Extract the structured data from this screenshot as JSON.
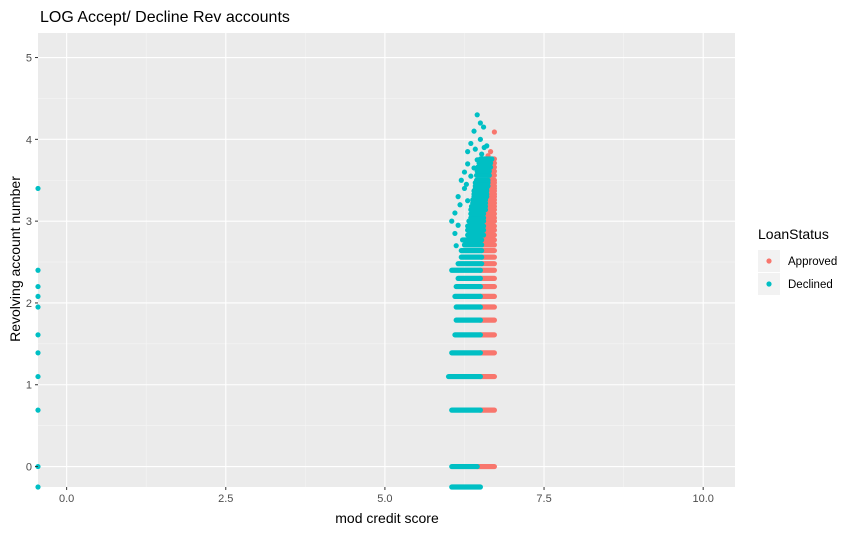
{
  "chart_data": {
    "type": "scatter",
    "title": "LOG Accept/ Decline Rev accounts",
    "xlabel": "mod credit score",
    "ylabel": "Revolving account number",
    "xlim": [
      -0.45,
      10.5
    ],
    "ylim": [
      -0.25,
      5.3
    ],
    "x_ticks": [
      0.0,
      2.5,
      5.0,
      7.5,
      10.0
    ],
    "x_tick_labels": [
      "0.0",
      "2.5",
      "5.0",
      "7.5",
      "10.0"
    ],
    "y_ticks": [
      0,
      1,
      2,
      3,
      4,
      5
    ],
    "y_tick_labels": [
      "0",
      "1",
      "2",
      "3",
      "4",
      "5"
    ],
    "grid": true,
    "legend": {
      "title": "LoanStatus",
      "position": "right"
    },
    "series": [
      {
        "name": "Approved",
        "color": "#f8766d",
        "bands": [
          {
            "y": 0.0,
            "x": [
              6.45,
              6.72
            ]
          },
          {
            "y": 0.69,
            "x": [
              6.5,
              6.72
            ]
          },
          {
            "y": 1.1,
            "x": [
              6.5,
              6.72
            ]
          },
          {
            "y": 1.39,
            "x": [
              6.5,
              6.72
            ]
          },
          {
            "y": 1.61,
            "x": [
              6.5,
              6.72
            ]
          },
          {
            "y": 1.79,
            "x": [
              6.5,
              6.72
            ]
          },
          {
            "y": 1.95,
            "x": [
              6.5,
              6.72
            ]
          },
          {
            "y": 2.08,
            "x": [
              6.5,
              6.72
            ]
          },
          {
            "y": 2.2,
            "x": [
              6.5,
              6.72
            ]
          },
          {
            "y": 2.3,
            "x": [
              6.5,
              6.72
            ]
          },
          {
            "y": 2.4,
            "x": [
              6.5,
              6.72
            ]
          },
          {
            "y": 2.48,
            "x": [
              6.52,
              6.72
            ]
          },
          {
            "y": 2.56,
            "x": [
              6.52,
              6.72
            ]
          },
          {
            "y": 2.64,
            "x": [
              6.52,
              6.72
            ]
          },
          {
            "y": 2.71,
            "x": [
              6.52,
              6.72
            ]
          },
          {
            "y": 2.77,
            "x": [
              6.52,
              6.72
            ]
          },
          {
            "y": 2.83,
            "x": [
              6.55,
              6.72
            ]
          },
          {
            "y": 2.89,
            "x": [
              6.55,
              6.72
            ]
          },
          {
            "y": 2.94,
            "x": [
              6.55,
              6.72
            ]
          },
          {
            "y": 3.0,
            "x": [
              6.55,
              6.72
            ]
          },
          {
            "y": 3.04,
            "x": [
              6.55,
              6.72
            ]
          },
          {
            "y": 3.09,
            "x": [
              6.55,
              6.72
            ]
          },
          {
            "y": 3.14,
            "x": [
              6.58,
              6.72
            ]
          },
          {
            "y": 3.18,
            "x": [
              6.58,
              6.72
            ]
          },
          {
            "y": 3.22,
            "x": [
              6.58,
              6.72
            ]
          },
          {
            "y": 3.26,
            "x": [
              6.58,
              6.72
            ]
          },
          {
            "y": 3.3,
            "x": [
              6.6,
              6.72
            ]
          },
          {
            "y": 3.33,
            "x": [
              6.6,
              6.72
            ]
          },
          {
            "y": 3.37,
            "x": [
              6.6,
              6.72
            ]
          },
          {
            "y": 3.4,
            "x": [
              6.6,
              6.72
            ]
          },
          {
            "y": 3.43,
            "x": [
              6.62,
              6.72
            ]
          },
          {
            "y": 3.47,
            "x": [
              6.62,
              6.72
            ]
          },
          {
            "y": 3.5,
            "x": [
              6.62,
              6.72
            ]
          },
          {
            "y": 3.56,
            "x": [
              6.64,
              6.72
            ]
          },
          {
            "y": 3.61,
            "x": [
              6.64,
              6.72
            ]
          },
          {
            "y": 3.66,
            "x": [
              6.66,
              6.72
            ]
          },
          {
            "y": 3.71,
            "x": [
              6.66,
              6.72
            ]
          },
          {
            "y": 3.76,
            "x": [
              6.68,
              6.72
            ]
          }
        ],
        "points": [
          {
            "x": 6.72,
            "y": 4.09
          },
          {
            "x": 6.62,
            "y": 3.8
          },
          {
            "x": 6.66,
            "y": 3.85
          },
          {
            "x": 6.7,
            "y": 3.74
          }
        ]
      },
      {
        "name": "Declined",
        "color": "#00bfc4",
        "bands": [
          {
            "y": -0.25,
            "x": [
              6.05,
              6.5
            ]
          },
          {
            "y": 0.0,
            "x": [
              6.05,
              6.45
            ]
          },
          {
            "y": 0.69,
            "x": [
              6.05,
              6.5
            ]
          },
          {
            "y": 1.1,
            "x": [
              6.0,
              6.5
            ]
          },
          {
            "y": 1.39,
            "x": [
              6.05,
              6.5
            ]
          },
          {
            "y": 1.61,
            "x": [
              6.1,
              6.5
            ]
          },
          {
            "y": 1.79,
            "x": [
              6.12,
              6.5
            ]
          },
          {
            "y": 1.95,
            "x": [
              6.12,
              6.5
            ]
          },
          {
            "y": 2.08,
            "x": [
              6.1,
              6.5
            ]
          },
          {
            "y": 2.2,
            "x": [
              6.12,
              6.5
            ]
          },
          {
            "y": 2.3,
            "x": [
              6.15,
              6.5
            ]
          },
          {
            "y": 2.4,
            "x": [
              6.05,
              6.5
            ]
          },
          {
            "y": 2.48,
            "x": [
              6.15,
              6.52
            ]
          },
          {
            "y": 2.56,
            "x": [
              6.2,
              6.52
            ]
          },
          {
            "y": 2.64,
            "x": [
              6.2,
              6.52
            ]
          },
          {
            "y": 2.71,
            "x": [
              6.25,
              6.52
            ]
          },
          {
            "y": 2.77,
            "x": [
              6.22,
              6.52
            ]
          },
          {
            "y": 2.83,
            "x": [
              6.3,
              6.55
            ]
          },
          {
            "y": 2.89,
            "x": [
              6.3,
              6.55
            ]
          },
          {
            "y": 2.94,
            "x": [
              6.3,
              6.55
            ]
          },
          {
            "y": 3.0,
            "x": [
              6.32,
              6.55
            ]
          },
          {
            "y": 3.04,
            "x": [
              6.35,
              6.55
            ]
          },
          {
            "y": 3.09,
            "x": [
              6.35,
              6.55
            ]
          },
          {
            "y": 3.14,
            "x": [
              6.35,
              6.58
            ]
          },
          {
            "y": 3.18,
            "x": [
              6.36,
              6.58
            ]
          },
          {
            "y": 3.22,
            "x": [
              6.38,
              6.58
            ]
          },
          {
            "y": 3.26,
            "x": [
              6.38,
              6.58
            ]
          },
          {
            "y": 3.3,
            "x": [
              6.4,
              6.6
            ]
          },
          {
            "y": 3.33,
            "x": [
              6.4,
              6.6
            ]
          },
          {
            "y": 3.37,
            "x": [
              6.4,
              6.6
            ]
          },
          {
            "y": 3.4,
            "x": [
              6.42,
              6.6
            ]
          },
          {
            "y": 3.43,
            "x": [
              6.42,
              6.62
            ]
          },
          {
            "y": 3.47,
            "x": [
              6.42,
              6.62
            ]
          },
          {
            "y": 3.5,
            "x": [
              6.44,
              6.62
            ]
          },
          {
            "y": 3.56,
            "x": [
              6.44,
              6.64
            ]
          },
          {
            "y": 3.61,
            "x": [
              6.45,
              6.64
            ]
          },
          {
            "y": 3.66,
            "x": [
              6.46,
              6.66
            ]
          },
          {
            "y": 3.71,
            "x": [
              6.48,
              6.66
            ]
          },
          {
            "y": 3.76,
            "x": [
              6.5,
              6.68
            ]
          }
        ],
        "points": [
          {
            "x": -0.45,
            "y": 3.4
          },
          {
            "x": -0.45,
            "y": 2.4
          },
          {
            "x": -0.45,
            "y": 2.2
          },
          {
            "x": -0.45,
            "y": 2.08
          },
          {
            "x": -0.45,
            "y": 1.95
          },
          {
            "x": -0.45,
            "y": 1.61
          },
          {
            "x": -0.45,
            "y": 1.39
          },
          {
            "x": -0.45,
            "y": 1.1
          },
          {
            "x": -0.45,
            "y": 0.69
          },
          {
            "x": -0.45,
            "y": 0.0
          },
          {
            "x": -0.45,
            "y": -0.25
          },
          {
            "x": 6.45,
            "y": 4.3
          },
          {
            "x": 6.5,
            "y": 4.2
          },
          {
            "x": 6.4,
            "y": 4.1
          },
          {
            "x": 6.55,
            "y": 4.15
          },
          {
            "x": 6.35,
            "y": 3.95
          },
          {
            "x": 6.5,
            "y": 4.0
          },
          {
            "x": 6.6,
            "y": 3.92
          },
          {
            "x": 6.42,
            "y": 3.88
          },
          {
            "x": 6.3,
            "y": 3.85
          },
          {
            "x": 6.52,
            "y": 3.82
          },
          {
            "x": 6.56,
            "y": 3.9
          },
          {
            "x": 6.3,
            "y": 3.7
          },
          {
            "x": 6.25,
            "y": 3.6
          },
          {
            "x": 6.35,
            "y": 3.55
          },
          {
            "x": 6.2,
            "y": 3.5
          },
          {
            "x": 6.25,
            "y": 3.4
          },
          {
            "x": 6.15,
            "y": 3.3
          },
          {
            "x": 6.18,
            "y": 3.2
          },
          {
            "x": 6.1,
            "y": 3.1
          },
          {
            "x": 6.05,
            "y": 3.0
          },
          {
            "x": 6.15,
            "y": 2.95
          },
          {
            "x": 6.1,
            "y": 2.85
          },
          {
            "x": 6.12,
            "y": 2.7
          },
          {
            "x": 6.3,
            "y": 3.25
          },
          {
            "x": 6.28,
            "y": 3.45
          },
          {
            "x": 6.4,
            "y": 3.65
          },
          {
            "x": 6.45,
            "y": 3.75
          }
        ]
      }
    ]
  }
}
